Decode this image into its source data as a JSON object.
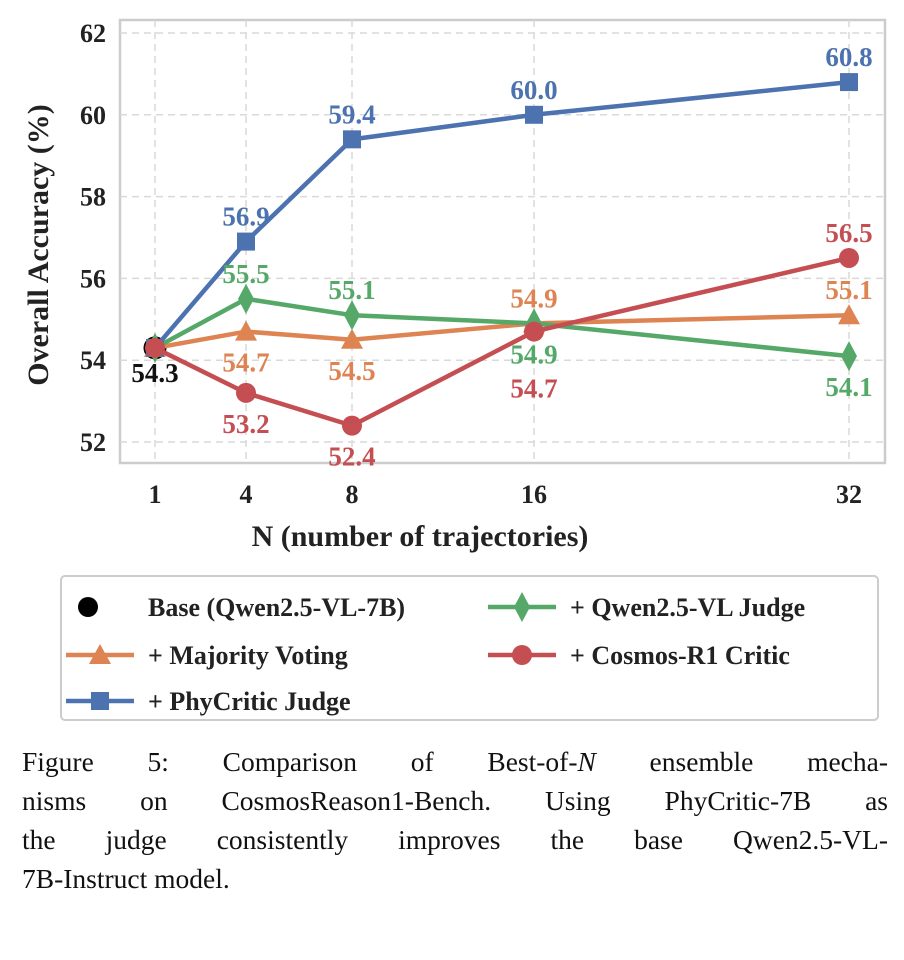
{
  "chart_data": {
    "type": "line",
    "xlabel": "N (number of trajectories)",
    "ylabel": "Overall Accuracy (%)",
    "x": [
      1,
      4,
      8,
      16,
      32
    ],
    "x_tick_labels": [
      "1",
      "4",
      "8",
      "16",
      "32"
    ],
    "y_ticks": [
      52,
      54,
      56,
      58,
      60,
      62
    ],
    "ylim": [
      51.5,
      62.3
    ],
    "grid": true,
    "legend_placement": "bottom (below chart, boxed, 2 columns)",
    "base": {
      "name": "Base (Qwen2.5-VL-7B)",
      "x": 1,
      "value": 54.3,
      "color": "#000000",
      "marker": "circle"
    },
    "series": [
      {
        "name": "+ Majority Voting",
        "color": "#DD8452",
        "marker": "triangle",
        "values": [
          54.3,
          54.7,
          54.5,
          54.9,
          55.1
        ]
      },
      {
        "name": "+ Qwen2.5-VL Judge",
        "color": "#55A868",
        "marker": "diamond",
        "values": [
          54.3,
          55.5,
          55.1,
          54.9,
          54.1
        ]
      },
      {
        "name": "+ Cosmos-R1 Critic",
        "color": "#C44E52",
        "marker": "circle",
        "values": [
          54.3,
          53.2,
          52.4,
          54.7,
          56.5
        ]
      },
      {
        "name": "+ PhyCritic Judge",
        "color": "#4C72B0",
        "marker": "square",
        "values": [
          54.3,
          56.9,
          59.4,
          60.0,
          60.8
        ]
      }
    ],
    "data_labels": {
      "base": "54.3",
      "+ Majority Voting": [
        "54.7",
        "54.5",
        "54.9",
        "55.1"
      ],
      "+ Qwen2.5-VL Judge": [
        "55.5",
        "55.1",
        "54.9",
        "54.1"
      ],
      "+ Cosmos-R1 Critic": [
        "53.2",
        "52.4",
        "54.7",
        "56.5"
      ],
      "+ PhyCritic Judge": [
        "56.9",
        "59.4",
        "60.0",
        "60.8"
      ]
    }
  },
  "caption": {
    "line1_a": "Figure 5: Comparison of Best-of-",
    "line1_n": "N",
    "line1_b": " ensemble mecha-",
    "line2": "nisms on CosmosReason1-Bench. Using PhyCritic-7B as",
    "line3": "the judge consistently improves the base Qwen2.5-VL-",
    "line4": "7B-Instruct model."
  }
}
